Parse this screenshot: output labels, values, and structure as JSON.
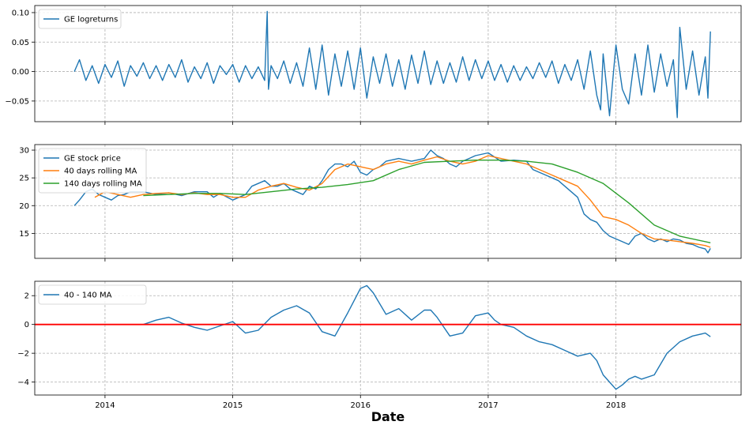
{
  "chart_data": [
    {
      "type": "line",
      "title": "",
      "xlabel": "",
      "ylabel": "",
      "xlim": [
        2013.45,
        2018.98
      ],
      "ylim": [
        -0.085,
        0.112
      ],
      "yticks": [
        -0.05,
        0.0,
        0.05,
        0.1
      ],
      "ytick_labels": [
        "−0.05",
        "0.00",
        "0.05",
        "0.10"
      ],
      "xticks": [
        2014,
        2015,
        2016,
        2017,
        2018
      ],
      "grid": true,
      "legend_position": "upper-left",
      "series": [
        {
          "name": "GE logreturns",
          "color": "#1f77b4",
          "x": [
            2013.76,
            2013.8,
            2013.85,
            2013.9,
            2013.95,
            2014.0,
            2014.05,
            2014.1,
            2014.15,
            2014.2,
            2014.25,
            2014.3,
            2014.35,
            2014.4,
            2014.45,
            2014.5,
            2014.55,
            2014.6,
            2014.65,
            2014.7,
            2014.75,
            2014.8,
            2014.85,
            2014.9,
            2014.95,
            2015.0,
            2015.05,
            2015.1,
            2015.15,
            2015.2,
            2015.25,
            2015.27,
            2015.28,
            2015.3,
            2015.35,
            2015.4,
            2015.45,
            2015.5,
            2015.55,
            2015.6,
            2015.65,
            2015.7,
            2015.75,
            2015.8,
            2015.85,
            2015.9,
            2015.95,
            2016.0,
            2016.05,
            2016.1,
            2016.15,
            2016.2,
            2016.25,
            2016.3,
            2016.35,
            2016.4,
            2016.45,
            2016.5,
            2016.55,
            2016.6,
            2016.65,
            2016.7,
            2016.75,
            2016.8,
            2016.85,
            2016.9,
            2016.95,
            2017.0,
            2017.05,
            2017.1,
            2017.15,
            2017.2,
            2017.25,
            2017.3,
            2017.35,
            2017.4,
            2017.45,
            2017.5,
            2017.55,
            2017.6,
            2017.65,
            2017.7,
            2017.75,
            2017.8,
            2017.85,
            2017.88,
            2017.9,
            2017.95,
            2018.0,
            2018.05,
            2018.1,
            2018.15,
            2018.2,
            2018.25,
            2018.3,
            2018.35,
            2018.4,
            2018.45,
            2018.48,
            2018.5,
            2018.55,
            2018.6,
            2018.65,
            2018.7,
            2018.72,
            2018.74
          ],
          "y": [
            0.0,
            0.02,
            -0.015,
            0.01,
            -0.02,
            0.012,
            -0.01,
            0.018,
            -0.025,
            0.01,
            -0.008,
            0.015,
            -0.012,
            0.01,
            -0.015,
            0.012,
            -0.01,
            0.02,
            -0.018,
            0.008,
            -0.012,
            0.015,
            -0.02,
            0.01,
            -0.005,
            0.012,
            -0.018,
            0.01,
            -0.012,
            0.008,
            -0.015,
            0.102,
            -0.03,
            0.01,
            -0.012,
            0.018,
            -0.02,
            0.015,
            -0.025,
            0.04,
            -0.03,
            0.045,
            -0.04,
            0.03,
            -0.025,
            0.035,
            -0.03,
            0.04,
            -0.045,
            0.025,
            -0.02,
            0.03,
            -0.025,
            0.02,
            -0.03,
            0.028,
            -0.02,
            0.035,
            -0.022,
            0.018,
            -0.02,
            0.015,
            -0.018,
            0.025,
            -0.015,
            0.02,
            -0.012,
            0.018,
            -0.015,
            0.012,
            -0.018,
            0.01,
            -0.015,
            0.008,
            -0.012,
            0.015,
            -0.01,
            0.018,
            -0.02,
            0.012,
            -0.015,
            0.02,
            -0.03,
            0.035,
            -0.04,
            -0.065,
            0.03,
            -0.075,
            0.045,
            -0.03,
            -0.055,
            0.03,
            -0.04,
            0.045,
            -0.035,
            0.03,
            -0.025,
            0.02,
            -0.078,
            0.075,
            -0.03,
            0.035,
            -0.04,
            0.025,
            -0.045,
            0.068
          ]
        }
      ]
    },
    {
      "type": "line",
      "title": "",
      "xlabel": "",
      "ylabel": "",
      "xlim": [
        2013.45,
        2018.98
      ],
      "ylim": [
        10.5,
        31.0
      ],
      "yticks": [
        15,
        20,
        25,
        30
      ],
      "ytick_labels": [
        "15",
        "20",
        "25",
        "30"
      ],
      "xticks": [
        2014,
        2015,
        2016,
        2017,
        2018
      ],
      "grid": true,
      "legend_position": "upper-left",
      "series": [
        {
          "name": "GE stock price",
          "color": "#1f77b4",
          "x": [
            2013.76,
            2013.8,
            2013.85,
            2013.9,
            2013.95,
            2014.0,
            2014.05,
            2014.1,
            2014.15,
            2014.2,
            2014.3,
            2014.4,
            2014.5,
            2014.6,
            2014.7,
            2014.8,
            2014.85,
            2014.9,
            2015.0,
            2015.05,
            2015.1,
            2015.15,
            2015.2,
            2015.25,
            2015.3,
            2015.35,
            2015.4,
            2015.45,
            2015.5,
            2015.55,
            2015.6,
            2015.65,
            2015.7,
            2015.75,
            2015.8,
            2015.85,
            2015.9,
            2015.95,
            2016.0,
            2016.05,
            2016.1,
            2016.15,
            2016.2,
            2016.3,
            2016.4,
            2016.5,
            2016.55,
            2016.6,
            2016.65,
            2016.7,
            2016.75,
            2016.8,
            2016.85,
            2016.9,
            2017.0,
            2017.1,
            2017.2,
            2017.3,
            2017.35,
            2017.4,
            2017.45,
            2017.5,
            2017.55,
            2017.6,
            2017.65,
            2017.7,
            2017.75,
            2017.8,
            2017.85,
            2017.9,
            2017.95,
            2018.0,
            2018.05,
            2018.1,
            2018.15,
            2018.2,
            2018.25,
            2018.3,
            2018.35,
            2018.4,
            2018.45,
            2018.5,
            2018.55,
            2018.6,
            2018.65,
            2018.7,
            2018.72,
            2018.74
          ],
          "y": [
            20.0,
            21.0,
            22.5,
            23.0,
            22.0,
            21.5,
            21.0,
            21.8,
            22.0,
            22.5,
            22.5,
            22.0,
            22.3,
            21.8,
            22.5,
            22.5,
            21.5,
            22.2,
            21.0,
            21.5,
            22.0,
            23.5,
            24.0,
            24.5,
            23.5,
            23.5,
            24.0,
            23.0,
            22.5,
            22.0,
            23.5,
            23.0,
            24.5,
            26.5,
            27.5,
            27.5,
            27.0,
            28.0,
            26.0,
            25.5,
            26.5,
            27.0,
            28.0,
            28.5,
            28.0,
            28.5,
            30.0,
            29.0,
            28.5,
            27.5,
            27.0,
            28.0,
            28.5,
            29.0,
            29.5,
            28.0,
            28.2,
            28.0,
            26.5,
            26.0,
            25.5,
            25.0,
            24.5,
            23.5,
            22.5,
            21.5,
            18.5,
            17.5,
            17.0,
            15.5,
            14.5,
            14.0,
            13.5,
            13.0,
            14.5,
            15.0,
            14.0,
            13.5,
            14.0,
            13.5,
            14.0,
            13.8,
            13.2,
            13.0,
            12.5,
            12.2,
            11.5,
            12.3
          ]
        },
        {
          "name": "40 days rolling MA",
          "color": "#ff7f0e",
          "x": [
            2013.92,
            2014.0,
            2014.1,
            2014.2,
            2014.3,
            2014.4,
            2014.5,
            2014.6,
            2014.7,
            2014.8,
            2014.9,
            2015.0,
            2015.1,
            2015.2,
            2015.3,
            2015.4,
            2015.5,
            2015.6,
            2015.7,
            2015.8,
            2015.9,
            2016.0,
            2016.1,
            2016.2,
            2016.3,
            2016.4,
            2016.5,
            2016.6,
            2016.7,
            2016.8,
            2016.9,
            2017.0,
            2017.1,
            2017.2,
            2017.3,
            2017.4,
            2017.5,
            2017.6,
            2017.7,
            2017.8,
            2017.9,
            2018.0,
            2018.1,
            2018.2,
            2018.3,
            2018.4,
            2018.5,
            2018.6,
            2018.7,
            2018.74
          ],
          "y": [
            21.5,
            22.5,
            22.0,
            21.5,
            22.0,
            22.2,
            22.3,
            22.0,
            22.3,
            22.0,
            22.0,
            21.5,
            21.5,
            22.8,
            23.5,
            24.0,
            23.3,
            22.8,
            24.0,
            26.5,
            27.5,
            27.0,
            26.5,
            27.5,
            28.0,
            27.5,
            28.2,
            28.8,
            28.0,
            27.5,
            28.0,
            29.0,
            28.5,
            28.0,
            27.5,
            26.5,
            25.5,
            24.5,
            23.5,
            21.0,
            18.0,
            17.5,
            16.5,
            15.0,
            14.0,
            13.8,
            13.5,
            13.2,
            12.8,
            12.5
          ]
        },
        {
          "name": "140 days rolling MA",
          "color": "#2ca02c",
          "x": [
            2014.3,
            2014.5,
            2014.7,
            2014.9,
            2015.1,
            2015.3,
            2015.5,
            2015.7,
            2015.9,
            2016.1,
            2016.3,
            2016.5,
            2016.7,
            2016.9,
            2017.1,
            2017.3,
            2017.5,
            2017.7,
            2017.9,
            2018.1,
            2018.3,
            2018.5,
            2018.74
          ],
          "y": [
            21.8,
            22.0,
            22.2,
            22.2,
            22.0,
            22.5,
            23.0,
            23.3,
            23.8,
            24.5,
            26.5,
            27.8,
            28.0,
            28.2,
            28.2,
            28.0,
            27.5,
            26.0,
            24.0,
            20.5,
            16.5,
            14.5,
            13.3
          ]
        }
      ]
    },
    {
      "type": "line",
      "title": "",
      "xlabel": "Date",
      "ylabel": "",
      "xlim": [
        2013.45,
        2018.98
      ],
      "ylim": [
        -4.9,
        3.0
      ],
      "yticks": [
        -4,
        -2,
        0,
        2
      ],
      "ytick_labels": [
        "−4",
        "−2",
        "0",
        "2"
      ],
      "xticks": [
        2014,
        2015,
        2016,
        2017,
        2018
      ],
      "xtick_labels": [
        "2014",
        "2015",
        "2016",
        "2017",
        "2018"
      ],
      "grid": true,
      "legend_position": "upper-left",
      "hline": {
        "y": 0,
        "color": "#ff0000"
      },
      "series": [
        {
          "name": "40 - 140 MA",
          "color": "#1f77b4",
          "x": [
            2014.3,
            2014.4,
            2014.5,
            2014.6,
            2014.7,
            2014.8,
            2014.9,
            2015.0,
            2015.1,
            2015.2,
            2015.3,
            2015.4,
            2015.5,
            2015.6,
            2015.7,
            2015.8,
            2015.9,
            2016.0,
            2016.05,
            2016.1,
            2016.2,
            2016.3,
            2016.4,
            2016.5,
            2016.55,
            2016.6,
            2016.7,
            2016.8,
            2016.9,
            2017.0,
            2017.05,
            2017.1,
            2017.2,
            2017.3,
            2017.4,
            2017.5,
            2017.6,
            2017.7,
            2017.8,
            2017.85,
            2017.9,
            2017.95,
            2018.0,
            2018.05,
            2018.1,
            2018.15,
            2018.2,
            2018.3,
            2018.4,
            2018.5,
            2018.6,
            2018.7,
            2018.74
          ],
          "y": [
            0.0,
            0.3,
            0.5,
            0.1,
            -0.2,
            -0.4,
            -0.1,
            0.2,
            -0.6,
            -0.4,
            0.5,
            1.0,
            1.3,
            0.8,
            -0.5,
            -0.8,
            0.8,
            2.5,
            2.7,
            2.2,
            0.7,
            1.1,
            0.3,
            1.0,
            1.0,
            0.5,
            -0.8,
            -0.6,
            0.6,
            0.8,
            0.3,
            0.0,
            -0.2,
            -0.8,
            -1.2,
            -1.4,
            -1.8,
            -2.2,
            -2.0,
            -2.5,
            -3.5,
            -4.0,
            -4.5,
            -4.2,
            -3.8,
            -3.6,
            -3.8,
            -3.5,
            -2.0,
            -1.2,
            -0.8,
            -0.6,
            -0.85
          ]
        }
      ]
    }
  ]
}
